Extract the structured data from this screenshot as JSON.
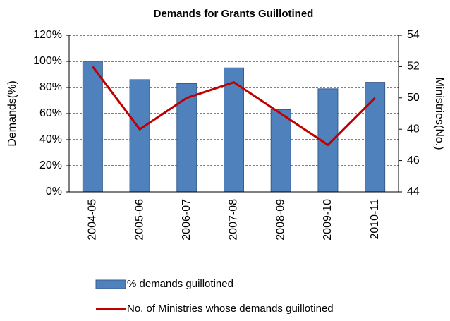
{
  "chart_data": {
    "type": "bar_line",
    "title": "Demands for Grants Guillotined",
    "y_label": "Demands(%)",
    "y2_label": "Ministries(No.)",
    "categories": [
      "2004-05",
      "2005-06",
      "2006-07",
      "2007-08",
      "2008-09",
      "2009-10",
      "2010-11"
    ],
    "series": [
      {
        "name": "% demands guillotined",
        "type": "bar",
        "color": "#4f81bd",
        "values": [
          100,
          86,
          83,
          95,
          63,
          79,
          84
        ]
      },
      {
        "name": "No. of Ministries whose demands guillotined",
        "type": "line",
        "axis": "y2",
        "color": "#c00000",
        "values": [
          52,
          48,
          50,
          51,
          49,
          47,
          50
        ]
      }
    ],
    "ylim": [
      0,
      120
    ],
    "yticks": [
      {
        "value": 0,
        "label": "0%"
      },
      {
        "value": 20,
        "label": "20%"
      },
      {
        "value": 40,
        "label": "40%"
      },
      {
        "value": 60,
        "label": "60%"
      },
      {
        "value": 80,
        "label": "80%"
      },
      {
        "value": 100,
        "label": "100%"
      },
      {
        "value": 120,
        "label": "120%"
      }
    ],
    "y2lim": [
      44,
      54
    ],
    "y2ticks": [
      44,
      46,
      48,
      50,
      52,
      54
    ],
    "grid": true
  }
}
